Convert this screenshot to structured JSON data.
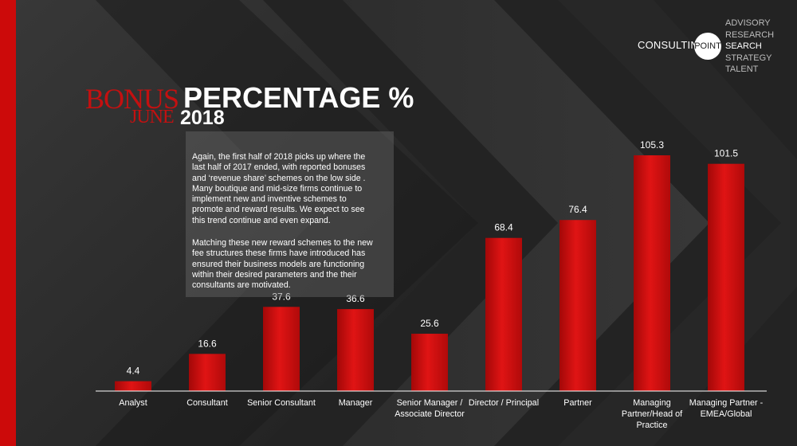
{
  "header": {
    "title_word1": "BONUS",
    "title_word2": "PERCENTAGE %",
    "subtitle_month": "JUNE",
    "subtitle_year": "2018"
  },
  "logo": {
    "name": "CONSULTING",
    "badge": "POINT",
    "services": [
      "ADVISORY",
      "RESEARCH",
      "SEARCH",
      "STRATEGY",
      "TALENT"
    ],
    "active_service": "SEARCH"
  },
  "commentary": {
    "paragraph1": "Again, the first half of 2018 picks up where the last half of 2017 ended, with reported bonuses and ‘revenue share’ schemes on the low side . Many boutique and mid-size firms continue to implement new and inventive schemes to promote and reward results. We expect to see this trend continue and even expand.",
    "paragraph2": "Matching these new reward schemes to the new fee structures these firms have introduced has ensured their business models are functioning within their desired parameters and the their consultants are motivated."
  },
  "colors": {
    "accent": "#cc0a0a",
    "bar": "#d80f0f",
    "background": "#232323"
  },
  "chart_data": {
    "type": "bar",
    "categories": [
      "Analyst",
      "Consultant",
      "Senior Consultant",
      "Manager",
      "Senior Manager / Associate Director",
      "Director / Principal",
      "Partner",
      "Managing Partner/Head of Practice",
      "Managing Partner - EMEA/Global"
    ],
    "values": [
      4.4,
      16.6,
      37.6,
      36.6,
      25.6,
      68.4,
      76.4,
      105.3,
      101.5
    ],
    "value_labels": [
      "4.4",
      "16.6",
      "37.6",
      "36.6",
      "25.6",
      "68.4",
      "76.4",
      "105.3",
      "101.5"
    ],
    "title": "BONUS PERCENTAGE %",
    "subtitle": "JUNE 2018",
    "xlabel": "",
    "ylabel": "",
    "ylim": [
      0,
      115
    ],
    "grid": false,
    "legend": "none"
  }
}
